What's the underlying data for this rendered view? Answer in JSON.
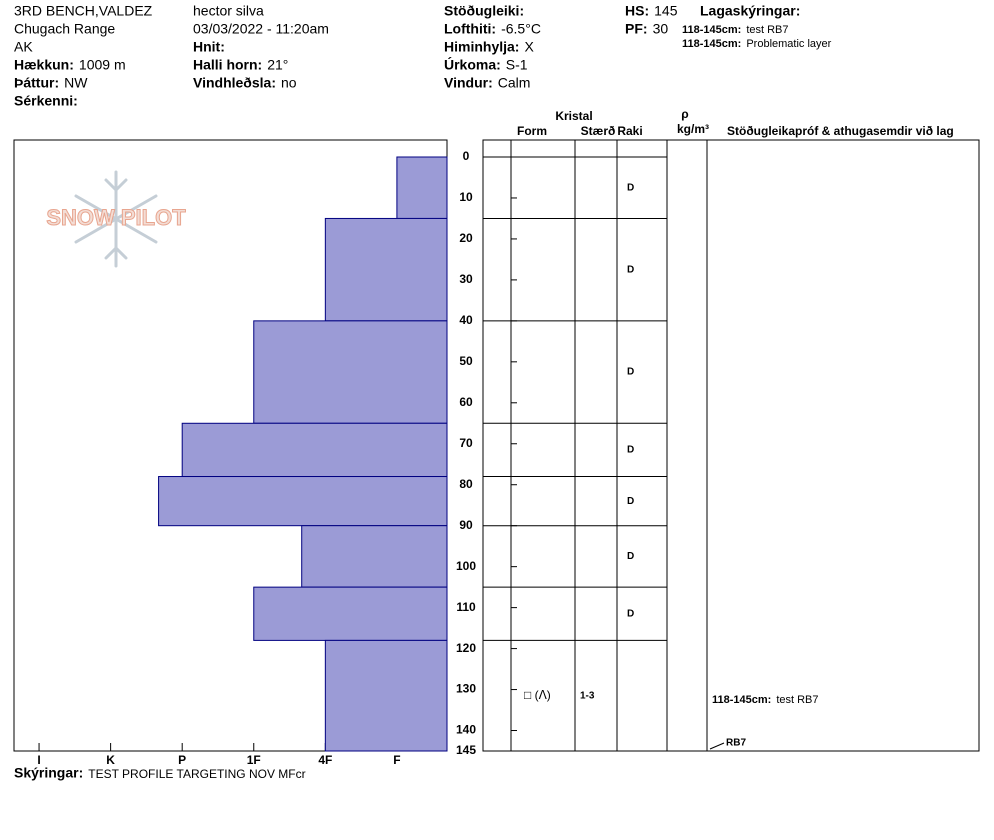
{
  "header": {
    "location": "3RD BENCH,VALDEZ",
    "range": "Chugach Range",
    "state": "AK",
    "elevation": {
      "label": "Hækkun:",
      "value": "1009 m"
    },
    "aspect": {
      "label": "Þáttur:",
      "value": "NW"
    },
    "specifics": {
      "label": "Sérkenni:"
    },
    "observer": "hector silva",
    "datetime": "03/03/2022 - 11:20am",
    "coords": {
      "label": "Hnit:"
    },
    "slope": {
      "label": "Halli horn:",
      "value": "21°"
    },
    "wind_loading": {
      "label": "Vindhleðsla:",
      "value": "no"
    },
    "stability": {
      "label": "Stöðugleiki:"
    },
    "air_temp": {
      "label": "Lofthiti:",
      "value": "-6.5°C"
    },
    "sky": {
      "label": "Himinhylja:",
      "value": "X"
    },
    "precip": {
      "label": "Úrkoma:",
      "value": "S-1"
    },
    "wind": {
      "label": "Vindur:",
      "value": "Calm"
    },
    "hs": {
      "label": "HS:",
      "value": "145"
    },
    "pf": {
      "label": "PF:",
      "value": "30"
    },
    "legend_title": "Lagaskýringar:",
    "layer_notes": [
      {
        "range": "118-145cm:",
        "text": "test RB7"
      },
      {
        "range": "118-145cm:",
        "text": "Problematic layer"
      }
    ]
  },
  "logo": "SNOW PILOT",
  "table_header": {
    "crystal": "Kristal",
    "form": "Form",
    "size": "Stærð",
    "moisture": "Raki",
    "density_symbol": "ρ",
    "density_unit": "kg/m³",
    "comments": "Stöðugleikapróf & athugasemdir við lag"
  },
  "footer": {
    "label": "Skýringar:",
    "text": "TEST PROFILE TARGETING NOV MFcr"
  },
  "chart_data": {
    "type": "snow-profile",
    "color": "#9b9bd6",
    "ylim": [
      0,
      145
    ],
    "yticks": [
      0,
      10,
      20,
      30,
      40,
      50,
      60,
      70,
      80,
      90,
      100,
      110,
      120,
      130,
      140,
      145
    ],
    "xlim": [
      6.35,
      0.3
    ],
    "xticks": [
      {
        "value": 6,
        "label": "I"
      },
      {
        "value": 5,
        "label": "K"
      },
      {
        "value": 4,
        "label": "P"
      },
      {
        "value": 3,
        "label": "1F"
      },
      {
        "value": 2,
        "label": "4F"
      },
      {
        "value": 1,
        "label": "F"
      }
    ],
    "layers": [
      {
        "top": 0,
        "bottom": 15,
        "hardness": 1,
        "moisture": "D"
      },
      {
        "top": 15,
        "bottom": 40,
        "hardness": 2,
        "moisture": "D"
      },
      {
        "top": 40,
        "bottom": 65,
        "hardness": 3,
        "moisture": "D"
      },
      {
        "top": 65,
        "bottom": 78,
        "hardness": 4,
        "moisture": "D"
      },
      {
        "top": 78,
        "bottom": 90,
        "hardness": 4.33,
        "moisture": "D"
      },
      {
        "top": 90,
        "bottom": 105,
        "hardness": 2.33,
        "moisture": "D"
      },
      {
        "top": 105,
        "bottom": 118,
        "hardness": 3,
        "moisture": "D"
      },
      {
        "top": 118,
        "bottom": 145,
        "hardness": 2,
        "form": "□ (ᐱ)",
        "size": "1-3"
      }
    ],
    "tests": [
      {
        "range": "118-145cm:",
        "result": "test RB7",
        "code": "RB7",
        "depth": 145
      }
    ]
  }
}
